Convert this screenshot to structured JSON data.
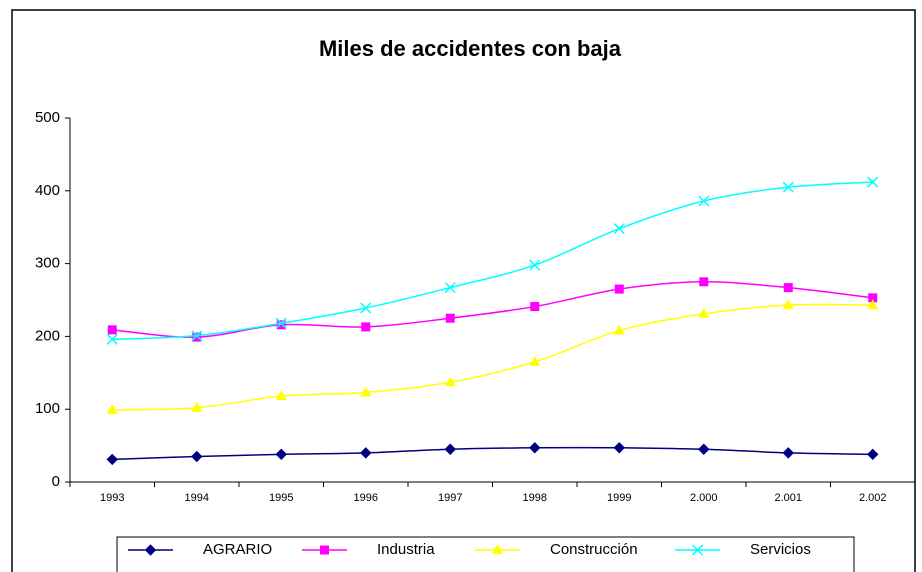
{
  "chart_data": {
    "type": "line",
    "title": "Miles de accidentes con baja",
    "categories": [
      "1993",
      "1994",
      "1995",
      "1996",
      "1997",
      "1998",
      "1999",
      "2.000",
      "2.001",
      "2.002"
    ],
    "series": [
      {
        "name": "AGRARIO",
        "color": "#000080",
        "marker": "diamond",
        "values": [
          31,
          35,
          38,
          40,
          45,
          47,
          47,
          45,
          40,
          38
        ]
      },
      {
        "name": "Industria",
        "color": "#ff00ff",
        "marker": "square",
        "values": [
          209,
          199,
          216,
          213,
          225,
          241,
          265,
          275,
          267,
          253
        ]
      },
      {
        "name": "Construcción",
        "color": "#ffff00",
        "marker": "triangle",
        "values": [
          99,
          102,
          118,
          123,
          137,
          165,
          208,
          231,
          243,
          243
        ]
      },
      {
        "name": "Servicios",
        "color": "#00ffff",
        "marker": "x",
        "values": [
          196,
          201,
          218,
          239,
          267,
          298,
          348,
          386,
          405,
          412
        ]
      }
    ],
    "ylim": [
      0,
      500
    ],
    "yticks": [
      0,
      100,
      200,
      300,
      400,
      500
    ],
    "grid": false,
    "legend": "bottom",
    "smooth": true
  }
}
